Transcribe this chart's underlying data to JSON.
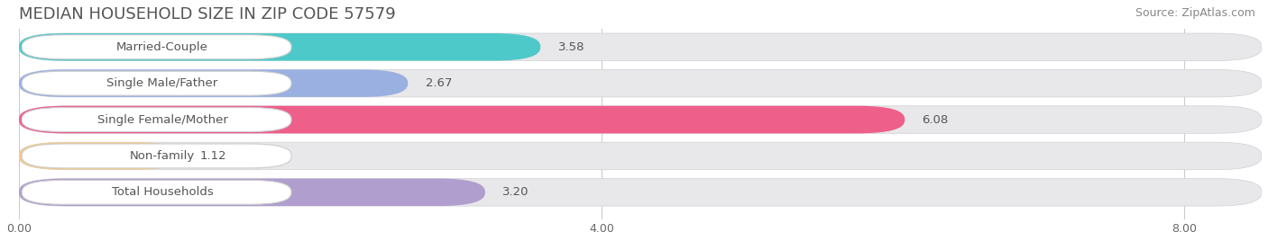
{
  "title": "MEDIAN HOUSEHOLD SIZE IN ZIP CODE 57579",
  "source": "Source: ZipAtlas.com",
  "categories": [
    "Married-Couple",
    "Single Male/Father",
    "Single Female/Mother",
    "Non-family",
    "Total Households"
  ],
  "values": [
    3.58,
    2.67,
    6.08,
    1.12,
    3.2
  ],
  "bar_colors": [
    "#4ec9c9",
    "#9ab0e0",
    "#ee5f8a",
    "#f5c98a",
    "#b09ece"
  ],
  "bg_bar_color": "#e8e8ea",
  "xlim": [
    0,
    8.53
  ],
  "xticks": [
    0.0,
    4.0,
    8.0
  ],
  "xtick_labels": [
    "0.00",
    "4.00",
    "8.00"
  ],
  "title_fontsize": 13,
  "source_fontsize": 9,
  "label_fontsize": 9.5,
  "value_fontsize": 9.5,
  "background_color": "#ffffff"
}
